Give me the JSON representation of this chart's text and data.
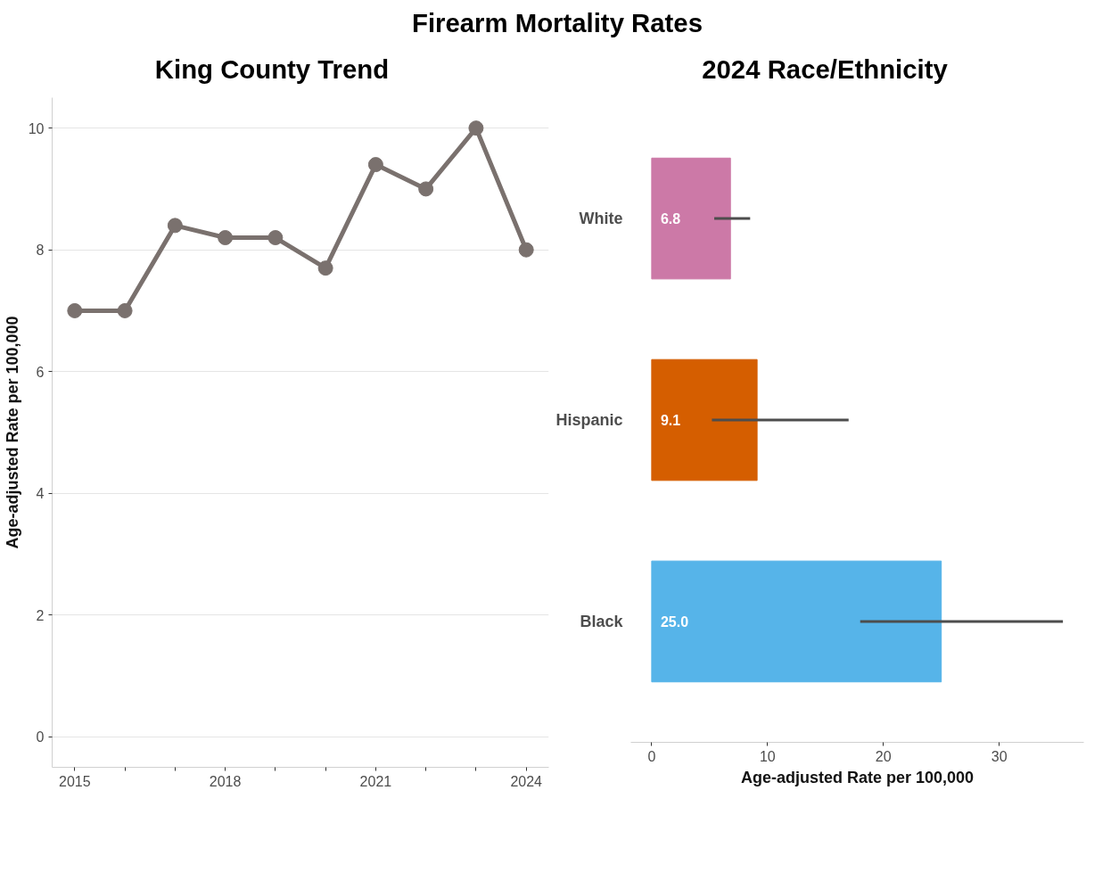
{
  "chart_data": [
    {
      "type": "line",
      "title": "Firearm Mortality Rates",
      "subtitle": "King County Trend",
      "ylabel": "Age-adjusted Rate per 100,000",
      "x": [
        2015,
        2016,
        2017,
        2018,
        2019,
        2020,
        2021,
        2022,
        2023,
        2024
      ],
      "series": [
        {
          "color": "#7a716e",
          "values": [
            7.0,
            7.0,
            8.4,
            8.2,
            8.2,
            7.7,
            9.4,
            9.0,
            10.0,
            8.0
          ]
        }
      ],
      "marker": "circle",
      "line_style": "solid",
      "grid": "y",
      "xlim": [
        2014.55,
        2024.45
      ],
      "xticks": [
        2015,
        {
          "value": 2016,
          "label": null
        },
        {
          "value": 2017,
          "label": null
        },
        2018,
        {
          "value": 2019,
          "label": null
        },
        {
          "value": 2020,
          "label": null
        },
        2021,
        {
          "value": 2022,
          "label": null
        },
        {
          "value": 2023,
          "label": null
        },
        2024
      ],
      "ylim": [
        -0.5,
        10.5
      ],
      "yticks": [
        0,
        2,
        4,
        6,
        8,
        10
      ]
    },
    {
      "type": "bar",
      "orientation": "horizontal",
      "title": "2024 Race/Ethnicity",
      "xlabel": "Age-adjusted Rate per 100,000",
      "categories": [
        "White",
        "Hispanic",
        "Black"
      ],
      "values": [
        6.8,
        9.1,
        25.0
      ],
      "value_labels": [
        "6.8",
        "9.1",
        "25.0"
      ],
      "colors": [
        "#cc79a7",
        "#d55e00",
        "#56b4e9"
      ],
      "errors": [
        [
          5.4,
          8.5
        ],
        [
          5.2,
          17.0
        ],
        [
          18.0,
          35.5
        ]
      ],
      "xlim": [
        -1.8,
        37.3
      ],
      "xticks": [
        0,
        10,
        20,
        30
      ],
      "grid": false
    }
  ]
}
